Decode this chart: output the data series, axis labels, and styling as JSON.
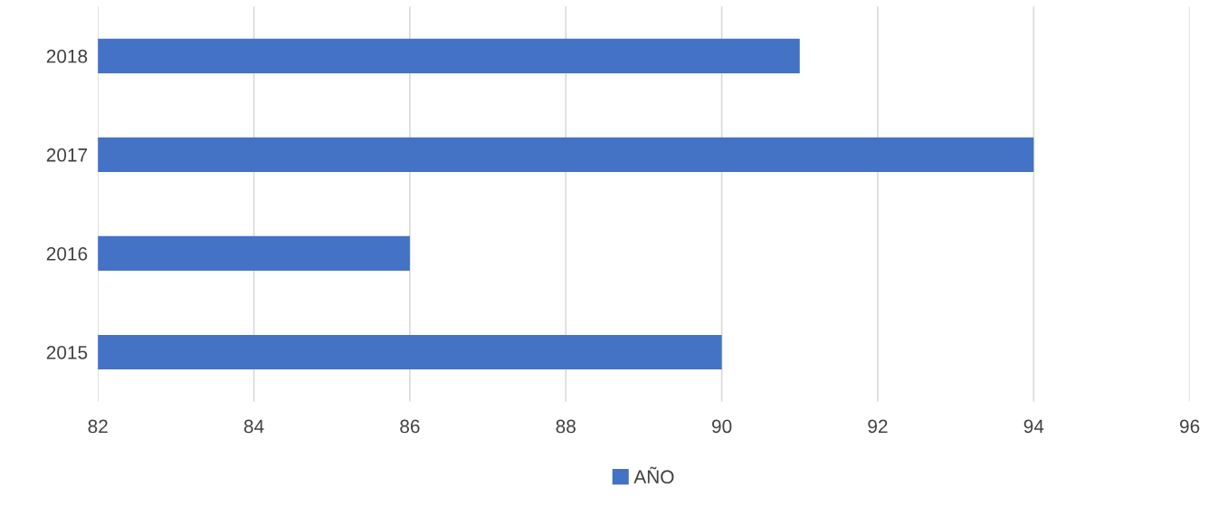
{
  "chart_data": {
    "type": "bar",
    "orientation": "horizontal",
    "categories": [
      "2018",
      "2017",
      "2016",
      "2015"
    ],
    "series": [
      {
        "name": "AÑO",
        "color": "#4472c4",
        "values": [
          91,
          94,
          86,
          90
        ]
      }
    ],
    "xlim": [
      82,
      96
    ],
    "xticks": [
      82,
      84,
      86,
      88,
      90,
      92,
      94,
      96
    ],
    "grid": "x",
    "legend": "bottom"
  }
}
